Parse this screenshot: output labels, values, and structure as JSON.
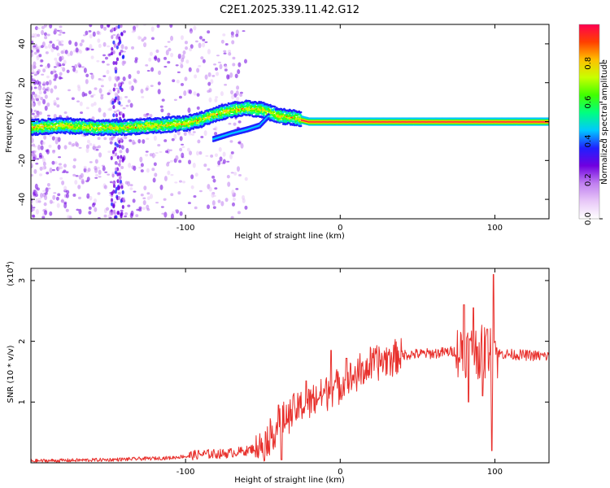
{
  "title": "C2E1.2025.339.11.42.G12",
  "chart_data": [
    {
      "type": "heatmap",
      "name": "spectrogram",
      "xlabel": "Height of straight line (km)",
      "ylabel": "Frequency (Hz)",
      "xlim": [
        -200,
        135
      ],
      "ylim": [
        -50,
        50
      ],
      "xticks": [
        -100,
        0,
        100
      ],
      "xtick_labels": [
        "-100",
        "0",
        "100"
      ],
      "yticks": [
        -40,
        -20,
        0,
        20,
        40
      ],
      "ytick_labels": [
        "-40",
        "-20",
        "0",
        "20",
        "40"
      ],
      "colorbar": {
        "label": "Normalized spectral amplitude",
        "range": [
          0,
          1
        ],
        "ticks": [
          0.0,
          0.2,
          0.4,
          0.6,
          0.8
        ],
        "tick_labels": [
          "0.0",
          "0.2",
          "0.4",
          "0.6",
          "0.8"
        ],
        "colors": [
          "#ffffff",
          "#e8c8f8",
          "#c080f0",
          "#7000e0",
          "#2020ff",
          "#00c8ff",
          "#00ff80",
          "#40ff00",
          "#c8ff00",
          "#ffc000",
          "#ff4000",
          "#ff0050"
        ]
      },
      "ridge": [
        {
          "x": -200,
          "y": -3
        },
        {
          "x": -180,
          "y": -2
        },
        {
          "x": -160,
          "y": -3
        },
        {
          "x": -140,
          "y": -3
        },
        {
          "x": -120,
          "y": -2
        },
        {
          "x": -100,
          "y": -1
        },
        {
          "x": -90,
          "y": 1
        },
        {
          "x": -80,
          "y": 4
        },
        {
          "x": -70,
          "y": 6
        },
        {
          "x": -60,
          "y": 7
        },
        {
          "x": -50,
          "y": 6
        },
        {
          "x": -40,
          "y": 3
        },
        {
          "x": -30,
          "y": 2
        },
        {
          "x": -20,
          "y": 0
        },
        {
          "x": 0,
          "y": 0
        },
        {
          "x": 50,
          "y": 0
        },
        {
          "x": 100,
          "y": 0
        },
        {
          "x": 135,
          "y": 0
        }
      ],
      "branch": [
        {
          "x": -82,
          "y": -9
        },
        {
          "x": -70,
          "y": -6
        },
        {
          "x": -60,
          "y": -4
        },
        {
          "x": -52,
          "y": -2
        },
        {
          "x": -46,
          "y": 3
        }
      ]
    },
    {
      "type": "line",
      "name": "snr",
      "xlabel": "Height of straight line (km)",
      "ylabel": "SNR (10 * v/v)",
      "scale_label": "(x10",
      "scale_exponent": "4",
      "scale_suffix": ")",
      "xlim": [
        -200,
        135
      ],
      "ylim": [
        0,
        3.2
      ],
      "xticks": [
        -100,
        0,
        100
      ],
      "xtick_labels": [
        "-100",
        "0",
        "100"
      ],
      "yticks": [
        1,
        2,
        3
      ],
      "ytick_labels": [
        "1",
        "2",
        "3"
      ],
      "color": "#e8302c",
      "trend": [
        {
          "x": -200,
          "y": 0.03
        },
        {
          "x": -150,
          "y": 0.05
        },
        {
          "x": -110,
          "y": 0.08
        },
        {
          "x": -90,
          "y": 0.14
        },
        {
          "x": -75,
          "y": 0.15
        },
        {
          "x": -60,
          "y": 0.2
        },
        {
          "x": -50,
          "y": 0.3
        },
        {
          "x": -40,
          "y": 0.6
        },
        {
          "x": -30,
          "y": 0.85
        },
        {
          "x": -20,
          "y": 1.0
        },
        {
          "x": -10,
          "y": 1.15
        },
        {
          "x": 0,
          "y": 1.3
        },
        {
          "x": 10,
          "y": 1.45
        },
        {
          "x": 20,
          "y": 1.6
        },
        {
          "x": 30,
          "y": 1.72
        },
        {
          "x": 40,
          "y": 1.78
        },
        {
          "x": 60,
          "y": 1.8
        },
        {
          "x": 80,
          "y": 1.85
        },
        {
          "x": 100,
          "y": 1.8
        },
        {
          "x": 135,
          "y": 1.75
        }
      ],
      "spikes": [
        {
          "x": -40,
          "y": 0.95
        },
        {
          "x": -38,
          "y": 0.05
        },
        {
          "x": -22,
          "y": 1.35
        },
        {
          "x": -6,
          "y": 1.85
        },
        {
          "x": 4,
          "y": 1.72
        },
        {
          "x": 80,
          "y": 2.6
        },
        {
          "x": 83,
          "y": 1.0
        },
        {
          "x": 86,
          "y": 2.55
        },
        {
          "x": 92,
          "y": 1.1
        },
        {
          "x": 95,
          "y": 2.2
        },
        {
          "x": 98,
          "y": 0.2
        },
        {
          "x": 99,
          "y": 3.1
        },
        {
          "x": 100,
          "y": 2.0
        }
      ]
    }
  ]
}
